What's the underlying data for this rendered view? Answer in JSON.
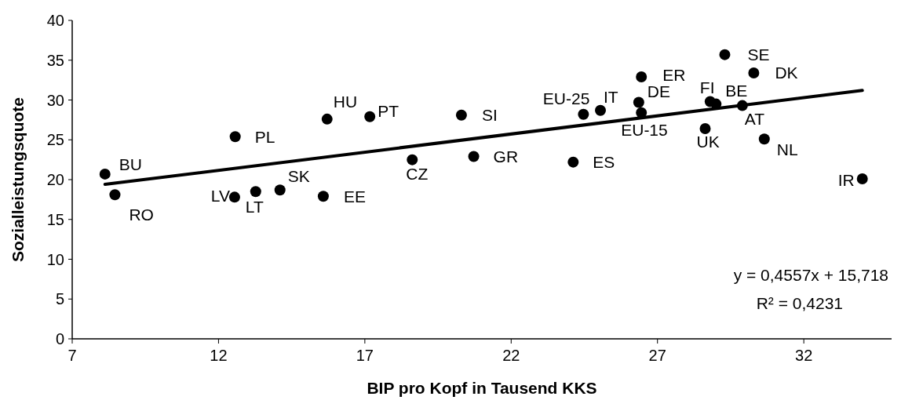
{
  "chart_data": {
    "type": "scatter",
    "xlabel": "BIP pro Kopf in Tausend KKS",
    "ylabel": "Sozialleistungsquote",
    "xlim": [
      7,
      35
    ],
    "ylim": [
      0,
      40
    ],
    "xticks": [
      7,
      12,
      17,
      22,
      27,
      32
    ],
    "yticks": [
      0,
      5,
      10,
      15,
      20,
      25,
      30,
      35,
      40
    ],
    "grid": false,
    "marker": "circle",
    "series": [
      {
        "color": "#000000",
        "x": [
          8.12,
          8.46,
          12.57,
          12.55,
          13.27,
          14.1,
          15.71,
          15.58,
          17.17,
          20.3,
          18.62,
          20.72,
          24.12,
          24.47,
          25.05,
          26.45,
          26.36,
          26.45,
          28.8,
          29.0,
          29.9,
          29.3,
          30.29,
          28.63,
          30.65,
          34.0
        ],
        "values": [
          20.7,
          18.1,
          25.4,
          17.8,
          18.5,
          18.7,
          27.6,
          17.9,
          27.9,
          28.1,
          22.5,
          22.9,
          22.2,
          28.2,
          28.7,
          32.9,
          29.7,
          28.4,
          29.8,
          29.5,
          29.3,
          35.7,
          33.4,
          26.4,
          25.1,
          20.1
        ]
      },
      {
        "type": "line",
        "color": "#000000",
        "marker": "none",
        "line_style": "solid",
        "x": [
          8.12,
          34.0
        ],
        "values": [
          19.4,
          31.2
        ]
      }
    ],
    "annotations": [
      {
        "text": "BU",
        "x": 8.12,
        "y": 20.7
      },
      {
        "text": "RO",
        "x": 8.46,
        "y": 18.1
      },
      {
        "text": "PL",
        "x": 12.57,
        "y": 25.4
      },
      {
        "text": "LV",
        "x": 12.55,
        "y": 17.8
      },
      {
        "text": "LT",
        "x": 13.27,
        "y": 18.5
      },
      {
        "text": "SK",
        "x": 14.1,
        "y": 18.7
      },
      {
        "text": "HU",
        "x": 15.71,
        "y": 27.6
      },
      {
        "text": "EE",
        "x": 15.58,
        "y": 17.9
      },
      {
        "text": "PT",
        "x": 17.17,
        "y": 27.9
      },
      {
        "text": "SI",
        "x": 20.3,
        "y": 28.1
      },
      {
        "text": "CZ",
        "x": 18.62,
        "y": 22.5
      },
      {
        "text": "GR",
        "x": 20.72,
        "y": 22.9
      },
      {
        "text": "ES",
        "x": 24.12,
        "y": 22.2
      },
      {
        "text": "EU-25",
        "x": 24.47,
        "y": 28.2
      },
      {
        "text": "IT",
        "x": 25.05,
        "y": 28.7
      },
      {
        "text": "ER",
        "x": 26.45,
        "y": 32.9
      },
      {
        "text": "DE",
        "x": 26.36,
        "y": 29.7
      },
      {
        "text": "EU-15",
        "x": 26.45,
        "y": 28.4
      },
      {
        "text": "FI",
        "x": 28.8,
        "y": 29.8
      },
      {
        "text": "BE",
        "x": 29.0,
        "y": 29.5
      },
      {
        "text": "AT",
        "x": 29.9,
        "y": 29.3
      },
      {
        "text": "SE",
        "x": 29.3,
        "y": 35.7
      },
      {
        "text": "DK",
        "x": 30.29,
        "y": 33.4
      },
      {
        "text": "UK",
        "x": 28.63,
        "y": 26.4
      },
      {
        "text": "NL",
        "x": 30.65,
        "y": 25.1
      },
      {
        "text": "IR",
        "x": 34.0,
        "y": 20.1
      },
      "y = 0,4557x + 15,718",
      "R² = 0,4231"
    ]
  }
}
